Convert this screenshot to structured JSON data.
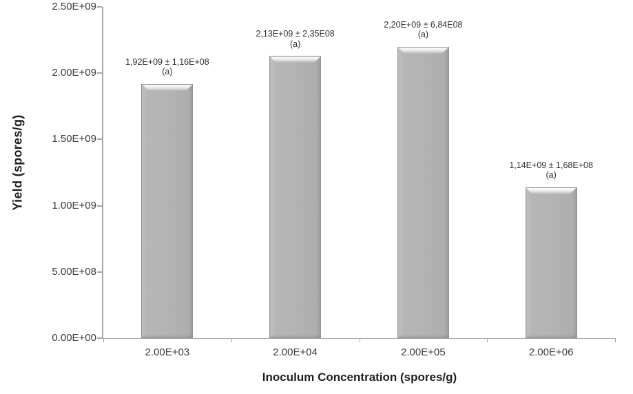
{
  "chart_data": {
    "type": "bar",
    "title": "",
    "xlabel": "Inoculum Concentration (spores/g)",
    "ylabel": "Yield (spores/g)",
    "ylim": [
      0,
      2500000000
    ],
    "grid": false,
    "legend": false,
    "bar_color": "#b3b3b3",
    "axis_color": "#a6a6a6",
    "categories": [
      "2.00E+03",
      "2.00E+04",
      "2.00E+05",
      "2.00E+06"
    ],
    "values": [
      1920000000,
      2130000000,
      2200000000,
      1140000000
    ],
    "errors": [
      116000000,
      235000000,
      684000000,
      168000000
    ],
    "bars": [
      {
        "category": "2.00E+03",
        "value": 1920000000,
        "error": 116000000,
        "label": "1,92E+09 ± 1,16E+08",
        "sublabel": "(a)"
      },
      {
        "category": "2.00E+04",
        "value": 2130000000,
        "error": 235000000,
        "label": "2,13E+09 ± 2,35E08",
        "sublabel": "(a)"
      },
      {
        "category": "2.00E+05",
        "value": 2200000000,
        "error": 684000000,
        "label": "2,20E+09 ± 6,84E08",
        "sublabel": "(a)"
      },
      {
        "category": "2.00E+06",
        "value": 1140000000,
        "error": 168000000,
        "label": "1,14E+09 ± 1,68E+08",
        "sublabel": "(a)"
      }
    ],
    "yticks": [
      {
        "value": 0,
        "label": "0.00E+00"
      },
      {
        "value": 500000000,
        "label": "5.00E+08"
      },
      {
        "value": 1000000000,
        "label": "1.00E+09"
      },
      {
        "value": 1500000000,
        "label": "1.50E+09"
      },
      {
        "value": 2000000000,
        "label": "2.00E+09"
      },
      {
        "value": 2500000000,
        "label": "2.50E+09"
      }
    ]
  }
}
